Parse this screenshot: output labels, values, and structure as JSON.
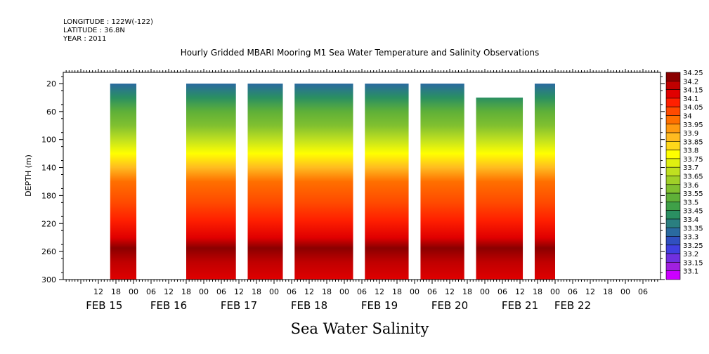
{
  "header": {
    "longitude": "LONGITUDE : 122W(-122)",
    "latitude": "LATITUDE : 36.8N",
    "year": "YEAR : 2011"
  },
  "chart_data": {
    "type": "heatmap",
    "title": "Hourly Gridded MBARI Mooring M1 Sea Water Temperature and Salinity Observations",
    "subtitle": "Sea Water Salinity",
    "ylabel": "DEPTH (m)",
    "xlabel": "",
    "ylim": [
      300,
      4
    ],
    "y_ticks": [
      "20",
      "60",
      "100",
      "140",
      "180",
      "220",
      "260",
      "300"
    ],
    "y_tick_values": [
      20,
      60,
      100,
      140,
      180,
      220,
      260,
      300
    ],
    "x_hour_ticks": [
      "12",
      "18",
      "00",
      "06",
      "12",
      "18",
      "00",
      "06",
      "12",
      "18",
      "00",
      "06",
      "12",
      "18",
      "00",
      "06",
      "12",
      "18",
      "00",
      "06",
      "12",
      "18",
      "00",
      "06",
      "12",
      "18",
      "00",
      "06",
      "12",
      "18",
      "00",
      "06"
    ],
    "x_hour_values": [
      12,
      18,
      24,
      30,
      36,
      42,
      48,
      54,
      60,
      66,
      72,
      78,
      84,
      90,
      96,
      102,
      108,
      114,
      120,
      126,
      132,
      138,
      144,
      150,
      156,
      162,
      168,
      174,
      180,
      186,
      192,
      198
    ],
    "x_date_labels": [
      "FEB 15",
      "FEB 16",
      "FEB 17",
      "FEB 18",
      "FEB 19",
      "FEB 20",
      "FEB 21",
      "FEB 22"
    ],
    "x_date_values": [
      14,
      36,
      60,
      84,
      108,
      132,
      156,
      174
    ],
    "xlim": [
      0,
      204
    ],
    "legend_levels": [
      "34.25",
      "34.2",
      "34.15",
      "34.1",
      "34.05",
      "34",
      "33.95",
      "33.9",
      "33.85",
      "33.8",
      "33.75",
      "33.7",
      "33.65",
      "33.6",
      "33.55",
      "33.5",
      "33.45",
      "33.4",
      "33.35",
      "33.3",
      "33.25",
      "33.2",
      "33.15",
      "33.1"
    ],
    "legend_colors": [
      "#8b0000",
      "#c00000",
      "#e00000",
      "#ff2000",
      "#ff4a00",
      "#ff7000",
      "#ff9a10",
      "#ffbb20",
      "#ffd81a",
      "#ffff00",
      "#e0f010",
      "#bfe020",
      "#a0d028",
      "#80c030",
      "#5fb038",
      "#3fa048",
      "#2a8f62",
      "#2a7f80",
      "#2a6aa0",
      "#3050c0",
      "#4040e0",
      "#7030e0",
      "#a020e0",
      "#cc00ff"
    ],
    "data_segments": [
      {
        "start": 16,
        "end": 25,
        "top_depth": 20
      },
      {
        "start": 42,
        "end": 59,
        "top_depth": 20
      },
      {
        "start": 63,
        "end": 75,
        "top_depth": 20
      },
      {
        "start": 79,
        "end": 99,
        "top_depth": 20
      },
      {
        "start": 103,
        "end": 118,
        "top_depth": 20
      },
      {
        "start": 122,
        "end": 137,
        "top_depth": 20
      },
      {
        "start": 141,
        "end": 157,
        "top_depth": 40
      },
      {
        "start": 161,
        "end": 168,
        "top_depth": 20
      }
    ],
    "depth_profile": [
      {
        "depth": 20,
        "value": 33.32
      },
      {
        "depth": 40,
        "value": 33.42
      },
      {
        "depth": 60,
        "value": 33.52
      },
      {
        "depth": 80,
        "value": 33.6
      },
      {
        "depth": 100,
        "value": 33.68
      },
      {
        "depth": 120,
        "value": 33.76
      },
      {
        "depth": 140,
        "value": 33.86
      },
      {
        "depth": 160,
        "value": 33.98
      },
      {
        "depth": 190,
        "value": 34.03
      },
      {
        "depth": 215,
        "value": 34.08
      },
      {
        "depth": 240,
        "value": 34.15
      },
      {
        "depth": 255,
        "value": 34.22
      },
      {
        "depth": 275,
        "value": 34.17
      },
      {
        "depth": 300,
        "value": 34.12
      }
    ],
    "colorbar_range": [
      33.1,
      34.25
    ]
  }
}
